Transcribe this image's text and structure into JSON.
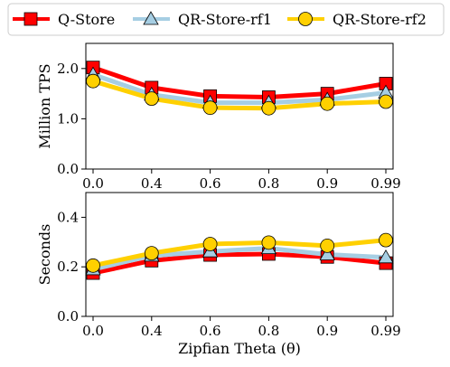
{
  "chart_data": {
    "type": "line",
    "legend": {
      "placement": "top-center",
      "entries": [
        {
          "name": "Q-Store",
          "color": "#ff0000",
          "marker": "square",
          "marker_fill": "#ff0000"
        },
        {
          "name": "QR-Store-rf1",
          "color": "#a6cee3",
          "marker": "triangle",
          "marker_fill": "#a6cee3"
        },
        {
          "name": "QR-Store-rf2",
          "color": "#ffd000",
          "marker": "circle",
          "marker_fill": "#ffd000"
        }
      ]
    },
    "x": [
      "0.0",
      "0.4",
      "0.6",
      "0.8",
      "0.9",
      "0.99"
    ],
    "xlabel": "Zipfian Theta (θ)",
    "panels": [
      {
        "ylabel": "Million TPS",
        "ylim": [
          0,
          2.5
        ],
        "yticks": [
          "0.0",
          "1.0",
          "2.0"
        ],
        "ytick_values": [
          0,
          1,
          2
        ],
        "series": [
          {
            "name": "Q-Store",
            "values": [
              2.02,
              1.62,
              1.45,
              1.43,
              1.5,
              1.7
            ]
          },
          {
            "name": "QR-Store-rf1",
            "values": [
              1.88,
              1.48,
              1.32,
              1.32,
              1.38,
              1.52
            ]
          },
          {
            "name": "QR-Store-rf2",
            "values": [
              1.75,
              1.4,
              1.22,
              1.21,
              1.3,
              1.34
            ]
          }
        ]
      },
      {
        "ylabel": "Seconds",
        "ylim": [
          0,
          0.5
        ],
        "yticks": [
          "0.0",
          "0.2",
          "0.4"
        ],
        "ytick_values": [
          0,
          0.2,
          0.4
        ],
        "series": [
          {
            "name": "Q-Store",
            "values": [
              0.175,
              0.225,
              0.248,
              0.252,
              0.24,
              0.215
            ]
          },
          {
            "name": "QR-Store-rf1",
            "values": [
              0.19,
              0.245,
              0.262,
              0.275,
              0.25,
              0.238
            ]
          },
          {
            "name": "QR-Store-rf2",
            "values": [
              0.205,
              0.255,
              0.292,
              0.298,
              0.285,
              0.308
            ]
          }
        ]
      }
    ]
  }
}
